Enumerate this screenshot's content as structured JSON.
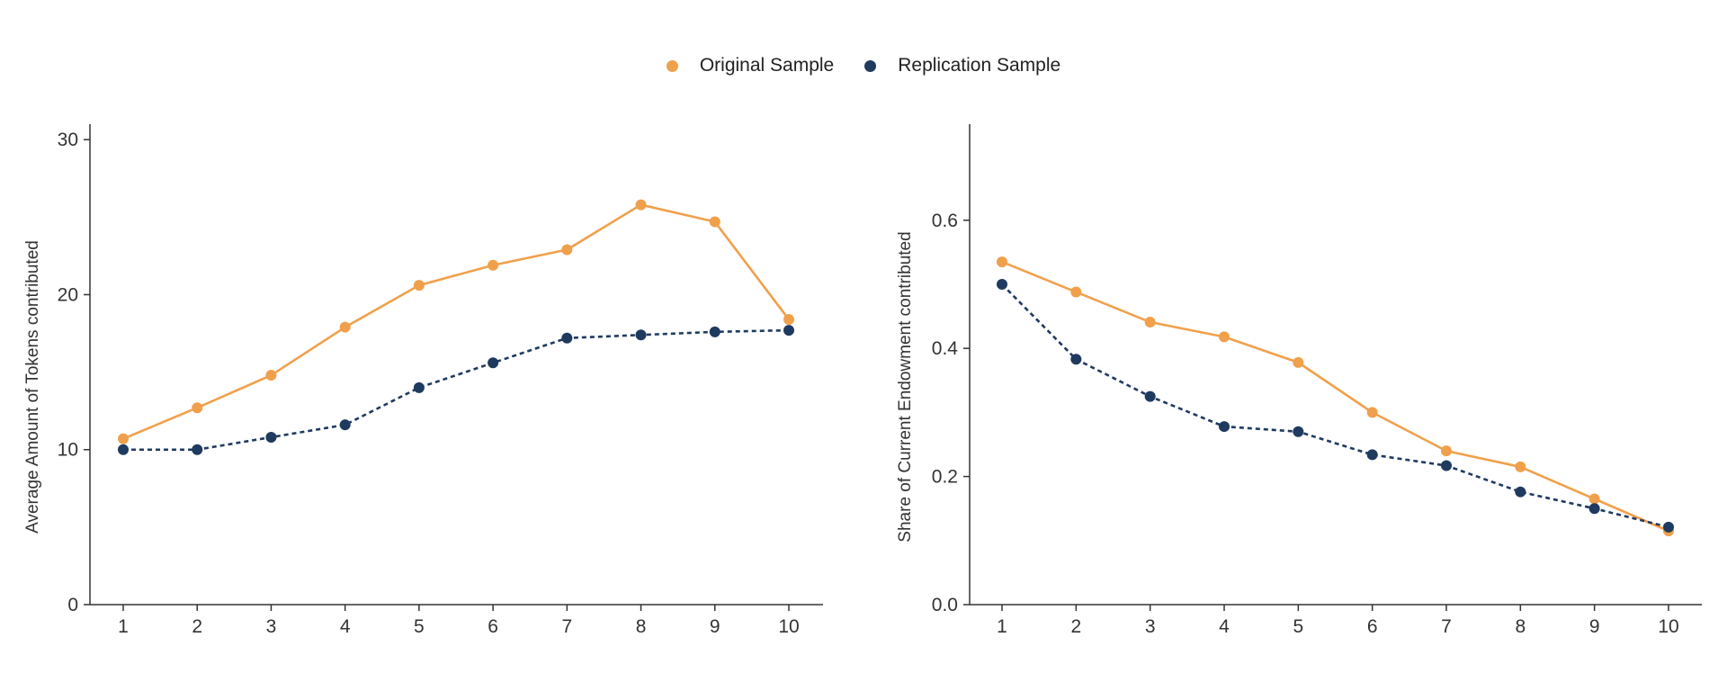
{
  "legend": {
    "items": [
      {
        "label": "Original Sample",
        "color": "#f0a04b"
      },
      {
        "label": "Replication Sample",
        "color": "#1f3a5f"
      }
    ]
  },
  "chart_data": [
    {
      "type": "line",
      "ylabel": "Average Amount of Tokens contributed",
      "xlabel": "",
      "x": [
        1,
        2,
        3,
        4,
        5,
        6,
        7,
        8,
        9,
        10
      ],
      "xticks": [
        "1",
        "2",
        "3",
        "4",
        "5",
        "6",
        "7",
        "8",
        "9",
        "10"
      ],
      "ylim": [
        0,
        31
      ],
      "yticks": [
        0,
        10,
        20,
        30
      ],
      "ytick_labels": [
        "0",
        "10",
        "20",
        "30"
      ],
      "grid": false,
      "series": [
        {
          "name": "Original Sample",
          "color": "#f0a04b",
          "dash": "solid",
          "values": [
            10.7,
            12.7,
            14.8,
            17.9,
            20.6,
            21.9,
            22.9,
            25.8,
            24.7,
            18.4
          ]
        },
        {
          "name": "Replication Sample",
          "color": "#1f3a5f",
          "dash": "dotted",
          "values": [
            10.0,
            10.0,
            10.8,
            11.6,
            14.0,
            15.6,
            17.2,
            17.4,
            17.6,
            17.7
          ]
        }
      ]
    },
    {
      "type": "line",
      "ylabel": "Share of Current Endowment contributed",
      "xlabel": "",
      "x": [
        1,
        2,
        3,
        4,
        5,
        6,
        7,
        8,
        9,
        10
      ],
      "xticks": [
        "1",
        "2",
        "3",
        "4",
        "5",
        "6",
        "7",
        "8",
        "9",
        "10"
      ],
      "ylim": [
        0,
        0.75
      ],
      "yticks": [
        0,
        0.2,
        0.4,
        0.6
      ],
      "ytick_labels": [
        "0.0",
        "0.2",
        "0.4",
        "0.6"
      ],
      "grid": false,
      "series": [
        {
          "name": "Original Sample",
          "color": "#f0a04b",
          "dash": "solid",
          "values": [
            0.535,
            0.488,
            0.441,
            0.418,
            0.378,
            0.3,
            0.24,
            0.215,
            0.165,
            0.115
          ]
        },
        {
          "name": "Replication Sample",
          "color": "#1f3a5f",
          "dash": "dotted",
          "values": [
            0.5,
            0.383,
            0.325,
            0.278,
            0.27,
            0.234,
            0.217,
            0.176,
            0.15,
            0.121
          ]
        }
      ]
    }
  ]
}
